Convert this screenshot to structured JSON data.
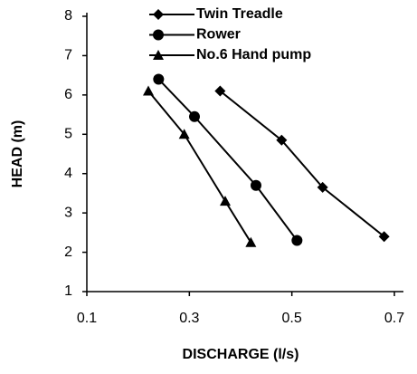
{
  "chart_data": {
    "type": "line",
    "xlabel": "DISCHARGE (l/s)",
    "ylabel": "HEAD (m)",
    "xlim": [
      0.1,
      0.7
    ],
    "xticks": [
      0.1,
      0.3,
      0.5,
      0.7
    ],
    "ylim": [
      1,
      8
    ],
    "yticks": [
      1,
      2,
      3,
      4,
      5,
      6,
      7,
      8
    ],
    "legend": "top",
    "grid": false,
    "series": [
      {
        "name": "Twin Treadle",
        "color": "#000000",
        "marker": "diamond",
        "x": [
          0.36,
          0.48,
          0.56,
          0.68
        ],
        "values": [
          6.1,
          4.85,
          3.65,
          2.4
        ]
      },
      {
        "name": "Rower",
        "color": "#000000",
        "marker": "circle",
        "x": [
          0.24,
          0.31,
          0.43,
          0.51
        ],
        "values": [
          6.4,
          5.45,
          3.7,
          2.3
        ]
      },
      {
        "name": "No.6 Hand pump",
        "color": "#000000",
        "marker": "triangle",
        "x": [
          0.22,
          0.29,
          0.37,
          0.42
        ],
        "values": [
          6.1,
          5.0,
          3.3,
          2.25
        ]
      }
    ]
  }
}
